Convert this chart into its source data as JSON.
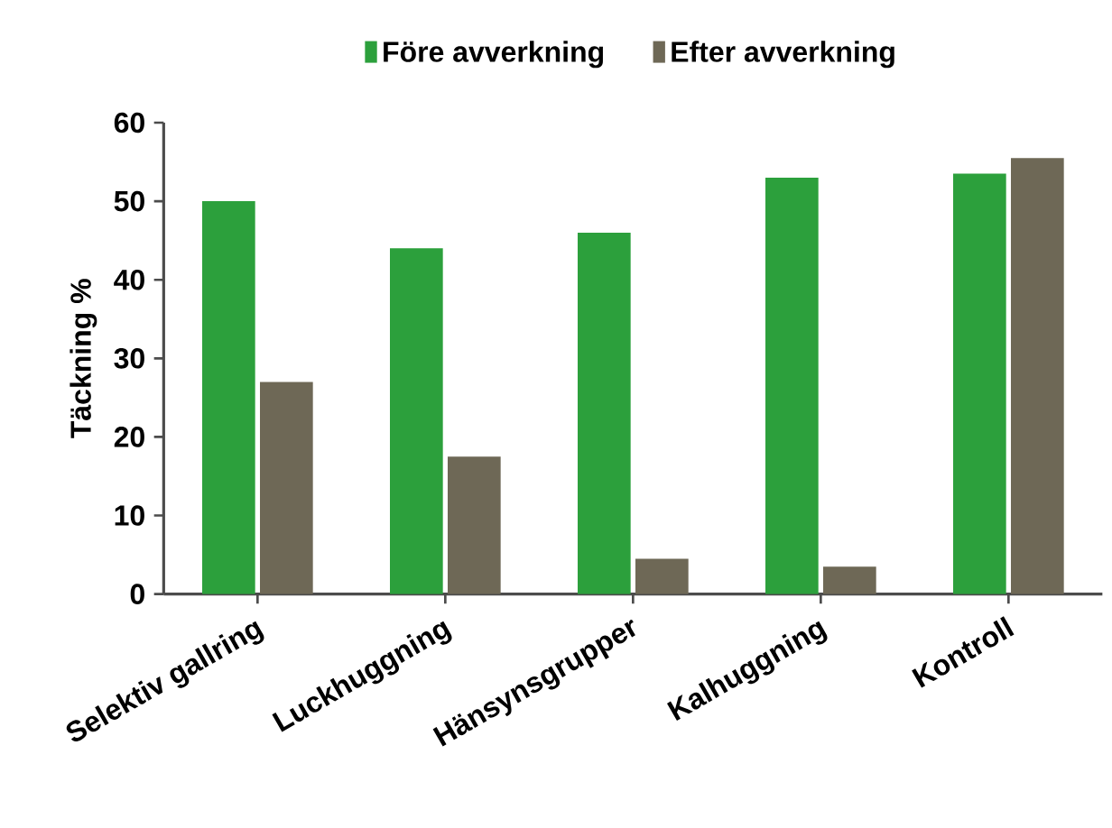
{
  "chart_data": {
    "type": "bar",
    "ylabel": "Täckning %",
    "categories": [
      "Selektiv gallring",
      "Luckhuggning",
      "Hänsynsgrupper",
      "Kalhuggning",
      "Kontroll"
    ],
    "series": [
      {
        "name": "Före avverkning",
        "color": "#2ca03c",
        "values": [
          50,
          44,
          46,
          53,
          53.5
        ]
      },
      {
        "name": "Efter avverkning",
        "color": "#6e6856",
        "values": [
          27,
          17.5,
          4.5,
          3.5,
          55.5
        ]
      }
    ],
    "ylim": [
      0,
      60
    ],
    "yticks": [
      0,
      10,
      20,
      30,
      40,
      50,
      60
    ],
    "legend": "top",
    "grid": false
  }
}
